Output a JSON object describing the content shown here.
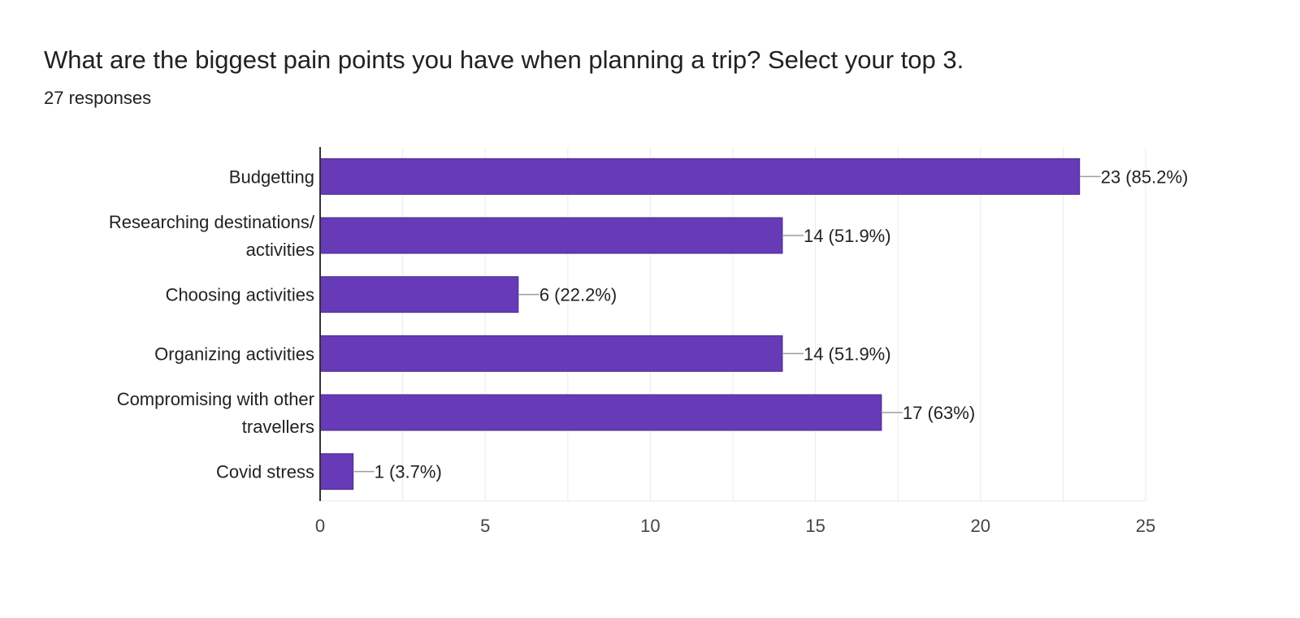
{
  "header": {
    "title": "What are the biggest pain points you have when planning a trip? Select your top 3.",
    "responses": "27 responses"
  },
  "colors": {
    "bar": "#673ab7",
    "bar_stroke": "#4a2a8a",
    "grid": "#ebebeb",
    "axis": "#333333",
    "leader": "#9e9e9e"
  },
  "chart_data": {
    "type": "bar",
    "orientation": "horizontal",
    "categories": [
      [
        "Budgetting"
      ],
      [
        "Researching destinations/",
        "activities"
      ],
      [
        "Choosing activities"
      ],
      [
        "Organizing activities"
      ],
      [
        "Compromising with other",
        "travellers"
      ],
      [
        "Covid stress"
      ]
    ],
    "values": [
      23,
      14,
      6,
      14,
      17,
      1
    ],
    "data_labels": [
      "23 (85.2%)",
      "14 (51.9%)",
      "6 (22.2%)",
      "14 (51.9%)",
      "17 (63%)",
      "1 (3.7%)"
    ],
    "xlim": [
      0,
      25
    ],
    "ticks": [
      0,
      5,
      10,
      15,
      20,
      25
    ],
    "minor_grid_step": 2.5,
    "grid": true,
    "legend": "none"
  }
}
